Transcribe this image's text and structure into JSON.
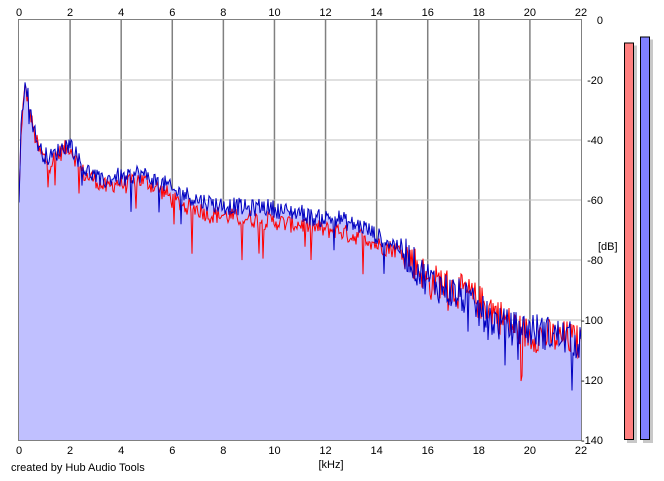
{
  "footer": {
    "credit": "created by Hub Audio Tools"
  },
  "chart_data": {
    "type": "area",
    "title": "",
    "xlabel": "[kHz]",
    "ylabel": "[dB]",
    "xlim": [
      0,
      22
    ],
    "ylim": [
      -140,
      0
    ],
    "x_ticks": [
      "0",
      "2",
      "4",
      "6",
      "8",
      "10",
      "12",
      "14",
      "16",
      "18",
      "20",
      "22"
    ],
    "y_ticks": [
      "0",
      "-20",
      "-40",
      "-60",
      "-80",
      "-100",
      "-120",
      "-140"
    ],
    "grid": true,
    "fill_color": "#c0c0ff",
    "series": [
      {
        "color": "#ff0000",
        "x": [
          0,
          0.1,
          0.25,
          0.4,
          0.6,
          0.8,
          1.0,
          1.2,
          1.5,
          1.8,
          2.0,
          2.3,
          2.6,
          3.0,
          3.2,
          3.5,
          3.8,
          4.2,
          4.6,
          5.0,
          5.4,
          5.8,
          6.0,
          6.5,
          7.0,
          7.5,
          8.0,
          8.5,
          9.0,
          9.5,
          10.0,
          10.5,
          11.0,
          11.5,
          12.0,
          12.5,
          13.0,
          13.5,
          14.0,
          14.5,
          15.0,
          15.5,
          15.8,
          16.0,
          16.5,
          17.0,
          17.5,
          18.0,
          18.5,
          19.0,
          19.5,
          20.0,
          20.5,
          21.0,
          21.5,
          22.0
        ],
        "y": [
          -60,
          -34,
          -22,
          -30,
          -38,
          -44,
          -46,
          -48,
          -45,
          -43,
          -42,
          -48,
          -52,
          -53,
          -55,
          -56,
          -54,
          -55,
          -53,
          -54,
          -56,
          -58,
          -60,
          -62,
          -63,
          -65,
          -65,
          -66,
          -66,
          -67,
          -67,
          -68,
          -68,
          -69,
          -70,
          -70,
          -72,
          -72,
          -75,
          -76,
          -77,
          -81,
          -84,
          -88,
          -87,
          -90,
          -91,
          -94,
          -96,
          -100,
          -103,
          -105,
          -105,
          -106,
          -106,
          -108
        ]
      },
      {
        "color": "#0000c0",
        "x": [
          0,
          0.1,
          0.25,
          0.4,
          0.6,
          0.8,
          1.0,
          1.2,
          1.5,
          1.8,
          2.0,
          2.3,
          2.6,
          3.0,
          3.2,
          3.5,
          3.8,
          4.2,
          4.6,
          5.0,
          5.4,
          5.8,
          6.0,
          6.5,
          7.0,
          7.5,
          8.0,
          8.5,
          9.0,
          9.5,
          10.0,
          10.5,
          11.0,
          11.5,
          12.0,
          12.5,
          13.0,
          13.5,
          14.0,
          14.5,
          15.0,
          15.5,
          15.8,
          16.0,
          16.5,
          17.0,
          17.5,
          18.0,
          18.5,
          19.0,
          19.5,
          20.0,
          20.5,
          21.0,
          21.5,
          22.0
        ],
        "y": [
          -58,
          -32,
          -19,
          -28,
          -37,
          -43,
          -45,
          -46,
          -44,
          -42,
          -41,
          -46,
          -50,
          -52,
          -54,
          -53,
          -52,
          -53,
          -51,
          -52,
          -54,
          -55,
          -57,
          -58,
          -60,
          -61,
          -62,
          -62,
          -63,
          -62,
          -63,
          -64,
          -64,
          -66,
          -66,
          -66,
          -68,
          -69,
          -72,
          -74,
          -76,
          -82,
          -85,
          -86,
          -89,
          -91,
          -93,
          -97,
          -100,
          -102,
          -103,
          -103,
          -104,
          -105,
          -106,
          -108
        ]
      }
    ],
    "level_meter": {
      "left_db": -7.5,
      "right_db": -5.5,
      "left_color": "#ff8080",
      "right_color": "#8080ff"
    }
  }
}
